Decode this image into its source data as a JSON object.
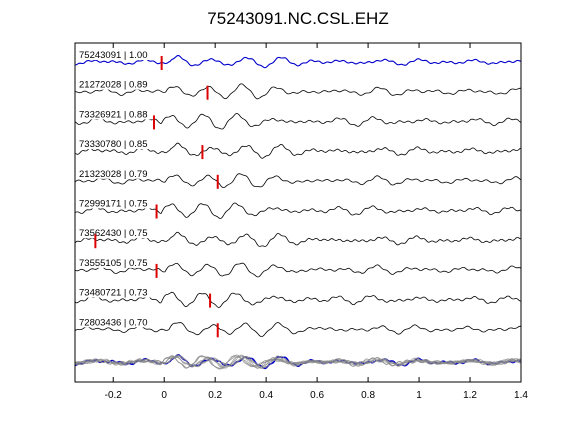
{
  "chart_data": {
    "type": "line",
    "title": "75243091.NC.CSL.EHZ",
    "xlabel": "",
    "ylabel": "",
    "xlim": [
      -0.35,
      1.4
    ],
    "xticks": [
      -0.2,
      0,
      0.2,
      0.4,
      0.6,
      0.8,
      1,
      1.2,
      1.4
    ],
    "xtick_labels": [
      "-0.2",
      "0",
      "0.2",
      "0.4",
      "0.6",
      "0.8",
      "1",
      "1.2",
      "1.4"
    ],
    "grid": false,
    "legend": "none",
    "colors": {
      "reference": "#0000cc",
      "trace": "#000000",
      "marker": "#dd0000",
      "stack": "#888888"
    },
    "series": [
      {
        "name": "75243091 | 1.00",
        "reference": true,
        "marker_x": -0.01
      },
      {
        "name": "21272028 | 0.89",
        "reference": false,
        "marker_x": 0.17
      },
      {
        "name": "73326921 | 0.88",
        "reference": false,
        "marker_x": -0.04
      },
      {
        "name": "73330780 | 0.85",
        "reference": false,
        "marker_x": 0.15
      },
      {
        "name": "21323028 | 0.79",
        "reference": false,
        "marker_x": 0.21
      },
      {
        "name": "72999171 | 0.75",
        "reference": false,
        "marker_x": -0.03
      },
      {
        "name": "73562430 | 0.75",
        "reference": false,
        "marker_x": -0.27
      },
      {
        "name": "73555105 | 0.75",
        "reference": false,
        "marker_x": -0.03
      },
      {
        "name": "73480721 | 0.73",
        "reference": false,
        "marker_x": 0.18
      },
      {
        "name": "72803436 | 0.70",
        "reference": false,
        "marker_x": 0.21
      }
    ],
    "stack_panel": true
  }
}
